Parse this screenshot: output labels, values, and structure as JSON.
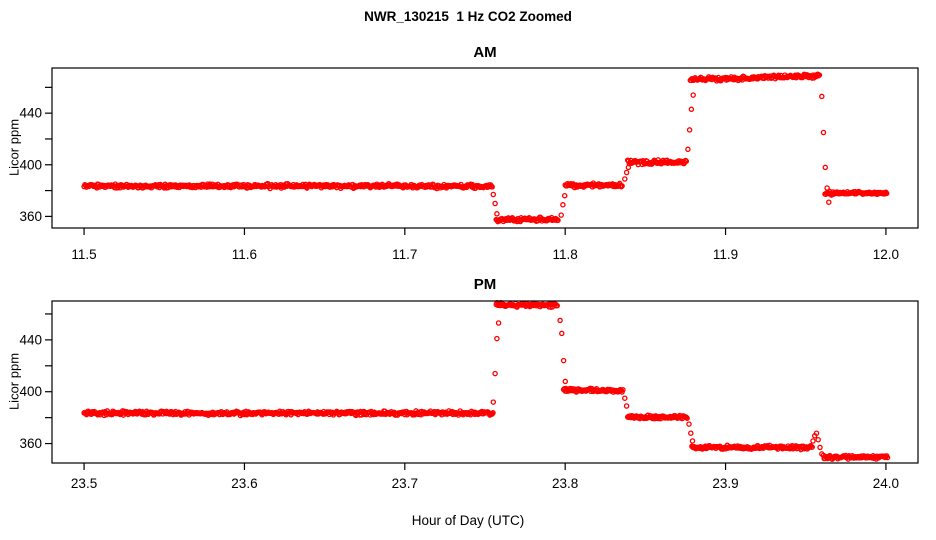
{
  "figure": {
    "title": "NWR_130215  1 Hz CO2 Zoomed",
    "xlabel": "Hour of Day (UTC)",
    "background_color": "#FFFFFF",
    "axis_color": "#000000",
    "point_color": "#FF0000"
  },
  "chart_data": [
    {
      "type": "scatter",
      "panel": "AM",
      "title": "AM",
      "ylabel": "Licor ppm",
      "marker": "open-circle",
      "color": "#FF0000",
      "legend": "none",
      "grid": false,
      "xlim": [
        11.48,
        12.02
      ],
      "ylim": [
        351,
        475
      ],
      "xticks": [
        11.5,
        11.6,
        11.7,
        11.8,
        11.9,
        12.0
      ],
      "xtick_labels": [
        "11.5",
        "11.6",
        "11.7",
        "11.8",
        "11.9",
        "12.0"
      ],
      "yticks": [
        360,
        380,
        400,
        420,
        440,
        460
      ],
      "ytick_labels": [
        "360",
        "",
        "400",
        "",
        "440",
        ""
      ],
      "seed": 42,
      "segments": [
        {
          "x_start": 11.5,
          "x_end": 11.755,
          "value": 383.5,
          "noise": 1.5
        },
        {
          "x_start": 11.757,
          "x_end": 11.796,
          "value": 357.5,
          "noise": 1.5
        },
        {
          "x_start": 11.8,
          "x_end": 11.836,
          "value": 384.0,
          "noise": 1.5
        },
        {
          "x_start": 11.839,
          "x_end": 11.876,
          "value": 402.0,
          "noise": 1.5
        },
        {
          "x_start": 11.878,
          "x_end": 11.959,
          "value": 466.0,
          "value_end": 469.0,
          "noise": 1.5
        },
        {
          "x_start": 11.962,
          "x_end": 12.001,
          "value": 378.0,
          "noise": 1.3
        }
      ],
      "transitions": [
        {
          "x": 11.7552,
          "values": [
            377,
            370,
            362
          ]
        },
        {
          "x": 11.7975,
          "values": [
            361,
            369,
            376
          ]
        },
        {
          "x": 11.8372,
          "values": [
            389,
            394,
            398
          ]
        },
        {
          "x": 11.8765,
          "values": [
            412,
            427,
            443,
            454
          ]
        },
        {
          "x": 11.96,
          "values": [
            453,
            425,
            398,
            382,
            371
          ]
        }
      ]
    },
    {
      "type": "scatter",
      "panel": "PM",
      "title": "PM",
      "ylabel": "Licor ppm",
      "marker": "open-circle",
      "color": "#FF0000",
      "legend": "none",
      "grid": false,
      "xlim": [
        23.48,
        24.02
      ],
      "ylim": [
        345,
        470
      ],
      "xticks": [
        23.5,
        23.6,
        23.7,
        23.8,
        23.9,
        24.0
      ],
      "xtick_labels": [
        "23.5",
        "23.6",
        "23.7",
        "23.8",
        "23.9",
        "24.0"
      ],
      "yticks": [
        360,
        380,
        400,
        420,
        440,
        460
      ],
      "ytick_labels": [
        "360",
        "",
        "400",
        "",
        "440",
        ""
      ],
      "seed": 1337,
      "segments": [
        {
          "x_start": 23.5,
          "x_end": 23.755,
          "value": 383.5,
          "noise": 1.5
        },
        {
          "x_start": 23.757,
          "x_end": 23.795,
          "value": 467.0,
          "noise": 1.5
        },
        {
          "x_start": 23.799,
          "x_end": 23.836,
          "value": 401.0,
          "noise": 1.5
        },
        {
          "x_start": 23.839,
          "x_end": 23.876,
          "value": 380.5,
          "noise": 1.5
        },
        {
          "x_start": 23.879,
          "x_end": 23.954,
          "value": 357.0,
          "noise": 1.4
        },
        {
          "x_start": 23.961,
          "x_end": 24.001,
          "value": 349.5,
          "noise": 1.3
        }
      ],
      "transitions": [
        {
          "x": 23.7552,
          "values": [
            392,
            414,
            441,
            453
          ]
        },
        {
          "x": 23.7968,
          "values": [
            455,
            445,
            424,
            408
          ]
        },
        {
          "x": 23.8372,
          "values": [
            395,
            389
          ]
        },
        {
          "x": 23.8772,
          "values": [
            375,
            368,
            362
          ]
        },
        {
          "x": 23.9545,
          "values": [
            362,
            366,
            368,
            363,
            357,
            352
          ]
        }
      ]
    }
  ]
}
